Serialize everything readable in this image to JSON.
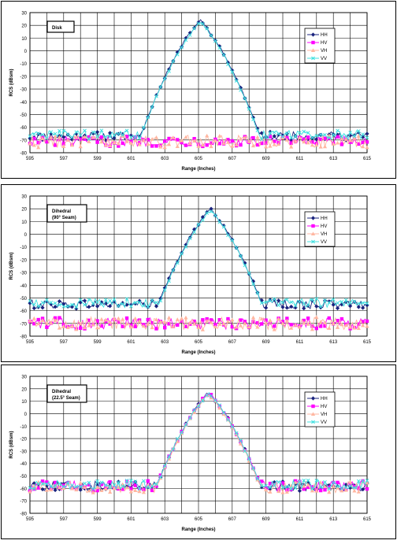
{
  "colors": {
    "HH": "#1a237e",
    "HV": "#ff00ff",
    "VH": "#ffb6a0",
    "VV": "#40e0e0"
  },
  "chart_data": [
    {
      "type": "line",
      "title": "Disk",
      "xlabel": "Range (Inches)",
      "ylabel": "RCS (dBsm)",
      "xlim": [
        595,
        615
      ],
      "ylim": [
        -80,
        30
      ],
      "xticks": [
        "595",
        "597",
        "599",
        "601",
        "603",
        "605",
        "607",
        "609",
        "611",
        "613",
        "615"
      ],
      "yticks": [
        "30",
        "20",
        "10",
        "0",
        "-10",
        "-20",
        "-30",
        "-40",
        "-50",
        "-60",
        "-70",
        "-80"
      ],
      "grid": true,
      "legend_position": "top-right",
      "peak": {
        "x": 605.1,
        "y": 24
      },
      "series": [
        {
          "name": "HH",
          "symbol": "diamond",
          "baseline": -67,
          "noise": 3.5,
          "peak": 24
        },
        {
          "name": "HV",
          "symbol": "square",
          "baseline": -71,
          "noise": 4.0,
          "peak": null
        },
        {
          "name": "VH",
          "symbol": "triangle",
          "baseline": -71,
          "noise": 5.0,
          "peak": null
        },
        {
          "name": "VV",
          "symbol": "x",
          "baseline": -66,
          "noise": 3.5,
          "peak": 23
        }
      ]
    },
    {
      "type": "line",
      "title": "Dihedral (90° Seam)",
      "xlabel": "Range (Inches)",
      "ylabel": "RCS (dBsm)",
      "xlim": [
        595,
        615
      ],
      "ylim": [
        -80,
        30
      ],
      "xticks": [
        "595",
        "597",
        "599",
        "601",
        "603",
        "605",
        "607",
        "609",
        "611",
        "613",
        "615"
      ],
      "yticks": [
        "30",
        "20",
        "10",
        "0",
        "-10",
        "-20",
        "-30",
        "-40",
        "-50",
        "-60",
        "-70",
        "-80"
      ],
      "grid": true,
      "legend_position": "top-right",
      "peak": {
        "x": 605.7,
        "y": 20
      },
      "series": [
        {
          "name": "HH",
          "symbol": "diamond",
          "baseline": -55,
          "noise": 3.5,
          "peak": 20
        },
        {
          "name": "HV",
          "symbol": "square",
          "baseline": -70,
          "noise": 4.5,
          "peak": null
        },
        {
          "name": "VH",
          "symbol": "triangle",
          "baseline": -70,
          "noise": 5.0,
          "peak": null
        },
        {
          "name": "VV",
          "symbol": "x",
          "baseline": -54,
          "noise": 3.5,
          "peak": 19
        }
      ]
    },
    {
      "type": "line",
      "title": "Dihedral (22.5° Seam)",
      "xlabel": "Range (Inches)",
      "ylabel": "RCS (dBsm)",
      "xlim": [
        595,
        615
      ],
      "ylim": [
        -80,
        30
      ],
      "xticks": [
        "595",
        "597",
        "599",
        "601",
        "603",
        "605",
        "607",
        "609",
        "611",
        "613",
        "615"
      ],
      "yticks": [
        "30",
        "20",
        "10",
        "0",
        "-10",
        "-20",
        "-30",
        "-40",
        "-50",
        "-60",
        "-70",
        "-80"
      ],
      "grid": true,
      "legend_position": "top-right",
      "peak": {
        "x": 605.6,
        "y": 17
      },
      "series": [
        {
          "name": "HH",
          "symbol": "diamond",
          "baseline": -58,
          "noise": 4.0,
          "peak": 17
        },
        {
          "name": "HV",
          "symbol": "square",
          "baseline": -58,
          "noise": 4.0,
          "peak": 17
        },
        {
          "name": "VH",
          "symbol": "triangle",
          "baseline": -59,
          "noise": 4.5,
          "peak": 16
        },
        {
          "name": "VV",
          "symbol": "x",
          "baseline": -57,
          "noise": 3.5,
          "peak": 17
        }
      ]
    }
  ]
}
